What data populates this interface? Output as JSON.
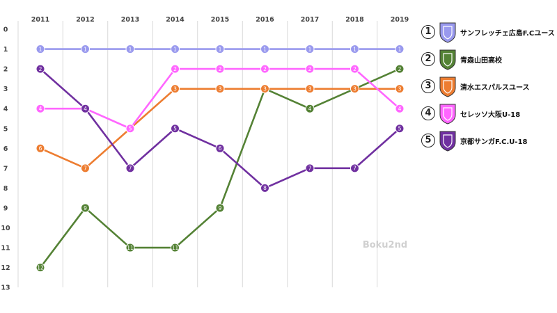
{
  "chart_data": {
    "type": "line",
    "title": "",
    "xlabel": "",
    "ylabel": "",
    "x": [
      "2011",
      "2012",
      "2013",
      "2014",
      "2015",
      "2016",
      "2017",
      "2018",
      "2019"
    ],
    "y_ticks": [
      "0",
      "1",
      "2",
      "3",
      "4",
      "5",
      "6",
      "7",
      "8",
      "9",
      "10",
      "11",
      "12",
      "13"
    ],
    "ylim": [
      0,
      13
    ],
    "y_inverted": true,
    "grid": "vertical",
    "watermark": "Boku2nd",
    "series": [
      {
        "name": "サンフレッチェ広島F.Cユース",
        "legend_number": "①",
        "color": "#9999ee",
        "values": [
          1,
          1,
          1,
          1,
          1,
          1,
          1,
          1,
          1
        ]
      },
      {
        "name": "青森山田高校",
        "legend_number": "②",
        "color": "#548235",
        "values": [
          12,
          9,
          11,
          11,
          9,
          3,
          4,
          3,
          2
        ]
      },
      {
        "name": "清水エスパルスユース",
        "legend_number": "③",
        "color": "#ed7d31",
        "values": [
          6,
          7,
          5,
          3,
          3,
          3,
          3,
          3,
          3
        ]
      },
      {
        "name": "セレッソ大阪U-18",
        "legend_number": "④",
        "color": "#ff66ff",
        "values": [
          4,
          4,
          5,
          2,
          2,
          2,
          2,
          2,
          4
        ]
      },
      {
        "name": "京都サンガF.C.U-18",
        "legend_number": "⑤",
        "color": "#7030a0",
        "values": [
          2,
          4,
          7,
          5,
          6,
          8,
          7,
          7,
          5
        ]
      }
    ]
  }
}
